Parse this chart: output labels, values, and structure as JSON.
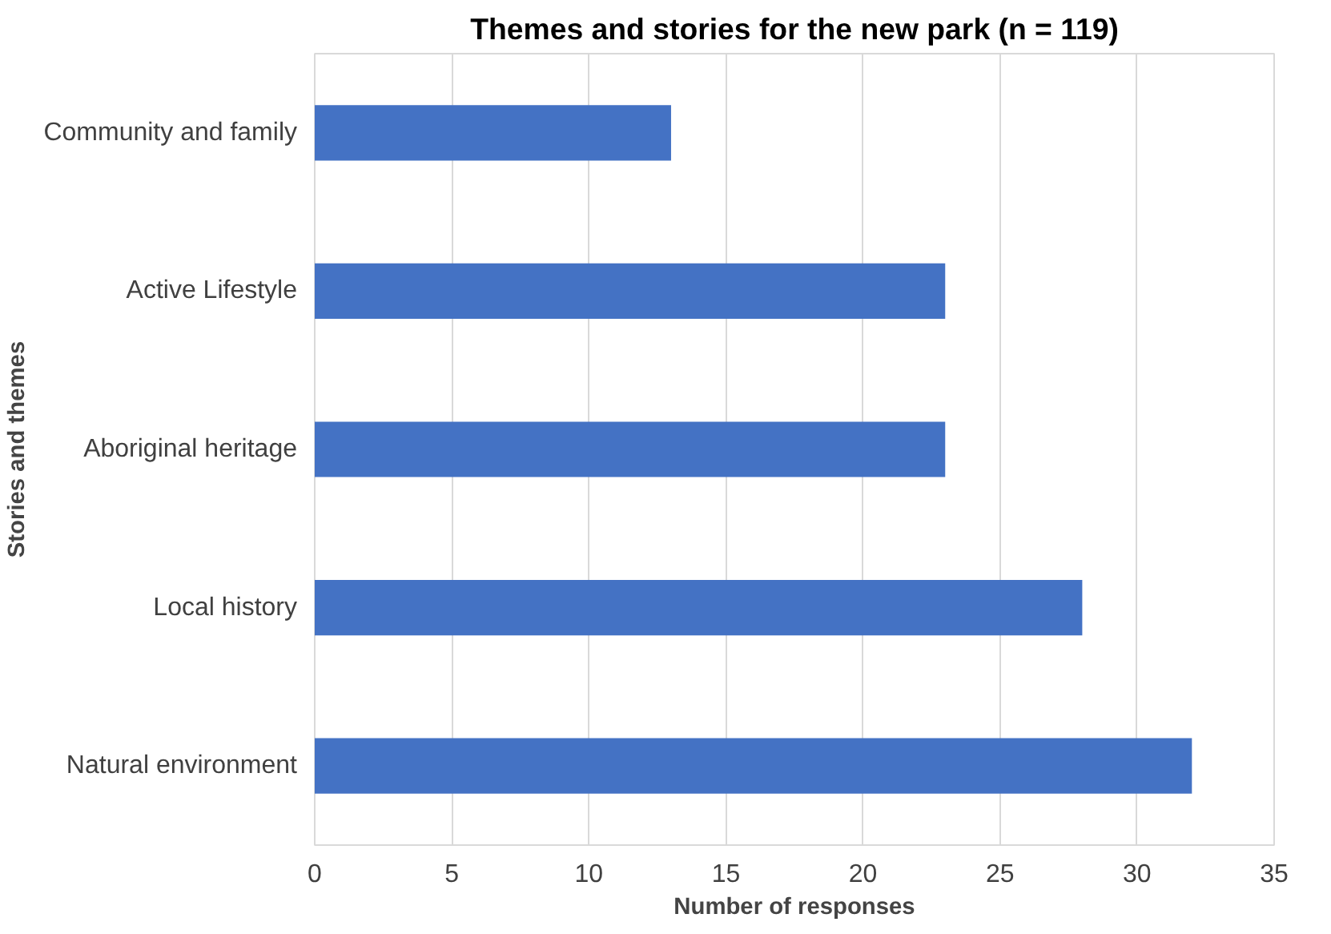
{
  "chart_data": {
    "type": "bar",
    "orientation": "horizontal",
    "title": "Themes and stories for the new park (n = 119)",
    "xlabel": "Number of responses",
    "ylabel": "Stories and themes",
    "categories": [
      "Community and family",
      "Active Lifestyle",
      "Aboriginal heritage",
      "Local history",
      "Natural environment"
    ],
    "values": [
      13,
      23,
      23,
      28,
      32
    ],
    "color": "#4472c4",
    "xlim": [
      0,
      35
    ],
    "xticks": [
      0,
      5,
      10,
      15,
      20,
      25,
      30,
      35
    ],
    "grid": "x"
  }
}
